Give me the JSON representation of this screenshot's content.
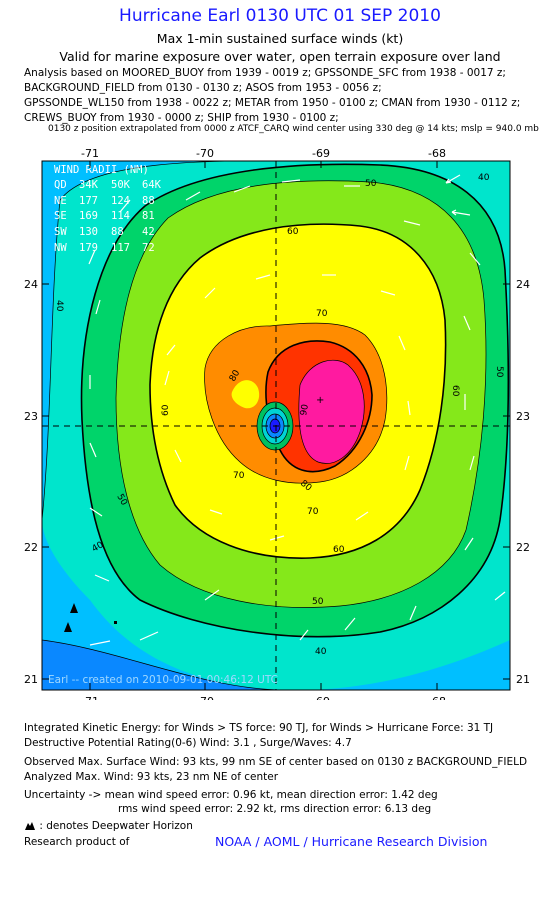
{
  "header": {
    "title": "Hurricane Earl 0130 UTC 01 SEP 2010",
    "subtitle1": "Max 1-min sustained surface winds (kt)",
    "subtitle2": "Valid for marine exposure over water, open terrain exposure over land",
    "analysis_lines": [
      "Analysis based on MOORED_BUOY from 1939 - 0019 z; GPSSONDE_SFC from 1938 - 0017 z;",
      "BACKGROUND_FIELD from 0130 - 0130 z; ASOS from 1953 - 0056 z;",
      "GPSSONDE_WL150 from 1938 - 0022 z; METAR from 1950 - 0100 z; CMAN from 1930 - 0112 z;",
      "CREWS_BUOY from 1930 - 0000 z; SHIP from 1930 - 0100 z;"
    ],
    "position_note": "0130 z position extrapolated from 0000 z ATCF_CARQ wind center using 330 deg @ 14 kts; mslp = 940.0 mb"
  },
  "map": {
    "x_ticks": [
      "-71",
      "-70",
      "-69",
      "-68"
    ],
    "y_ticks": [
      "24",
      "23",
      "22",
      "21"
    ],
    "contour_labels": [
      "40",
      "50",
      "60",
      "70",
      "80",
      "90"
    ],
    "colors": {
      "ring_40": "#00e5cc",
      "ring_50": "#00d46a",
      "ring_60": "#85e81a",
      "ring_70": "#ffff00",
      "ring_80": "#ff8c00",
      "ring_90": "#ff3300",
      "core": "#ff1aa0",
      "outer": "#00bfff",
      "deep": "#0a88ff"
    },
    "wind_radii": {
      "title": "WIND RADII (NM)",
      "header": [
        "QD",
        "34K",
        "50K",
        "64K"
      ],
      "rows": [
        [
          "NE",
          "177",
          "124",
          "88"
        ],
        [
          "SE",
          "169",
          "114",
          "81"
        ],
        [
          "SW",
          "130",
          "88",
          "42"
        ],
        [
          "NW",
          "179",
          "117",
          "72"
        ]
      ]
    },
    "created_label": "Earl -- created on 2010-09-01 00:46:12 UTC"
  },
  "footer": {
    "lines": [
      "Integrated Kinetic Energy:  for Winds > TS force: 90 TJ,  for Winds > Hurricane Force: 31 TJ",
      "Destructive Potential Rating(0-6)   Wind: 3.1 , Surge/Waves: 4.7",
      "Observed Max. Surface Wind: 93 kts, 99 nm SE of center based on 0130 z BACKGROUND_FIELD",
      "Analyzed Max. Wind: 93 kts, 23 nm NE of center",
      "Uncertainty -> mean wind speed error: 0.96 kt,   mean direction error: 1.42 deg",
      "rms wind speed error: 2.92 kt,   rms direction error: 6.13 deg"
    ],
    "legend": ": denotes Deepwater Horizon",
    "research_label": "Research product of",
    "noaa_label": "NOAA / AOML / Hurricane Research Division"
  }
}
